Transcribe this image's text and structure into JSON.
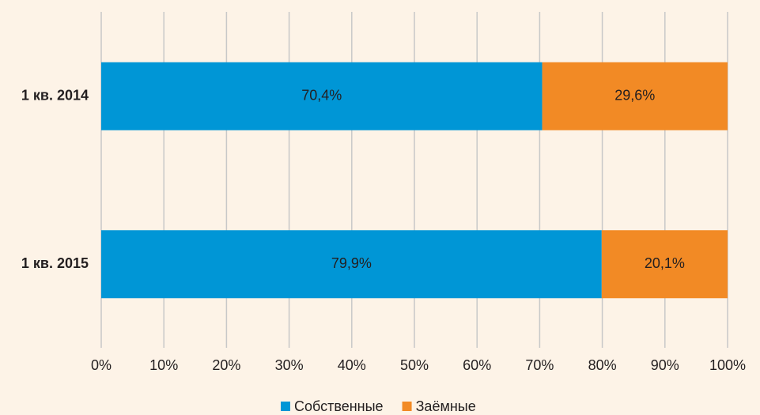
{
  "chart_data": {
    "type": "stacked_barh",
    "categories": [
      "1 кв. 2014",
      "1 кв. 2015"
    ],
    "series": [
      {
        "name": "Собственные",
        "color": "#0096d6",
        "values": [
          70.4,
          79.9
        ],
        "value_labels": [
          "70,4%",
          "79,9%"
        ]
      },
      {
        "name": "Заёмные",
        "color": "#f28a25",
        "values": [
          29.6,
          20.1
        ],
        "value_labels": [
          "29,6%",
          "20,1%"
        ]
      }
    ],
    "xlim": [
      0,
      100
    ],
    "xticks": [
      {
        "value": 0,
        "label": "0%"
      },
      {
        "value": 10,
        "label": "10%"
      },
      {
        "value": 20,
        "label": "20%"
      },
      {
        "value": 30,
        "label": "30%"
      },
      {
        "value": 40,
        "label": "40%"
      },
      {
        "value": 50,
        "label": "50%"
      },
      {
        "value": 60,
        "label": "60%"
      },
      {
        "value": 70,
        "label": "70%"
      },
      {
        "value": 80,
        "label": "80%"
      },
      {
        "value": 90,
        "label": "90%"
      },
      {
        "value": 100,
        "label": "100%"
      }
    ],
    "grid": true,
    "legend": "bottom"
  }
}
